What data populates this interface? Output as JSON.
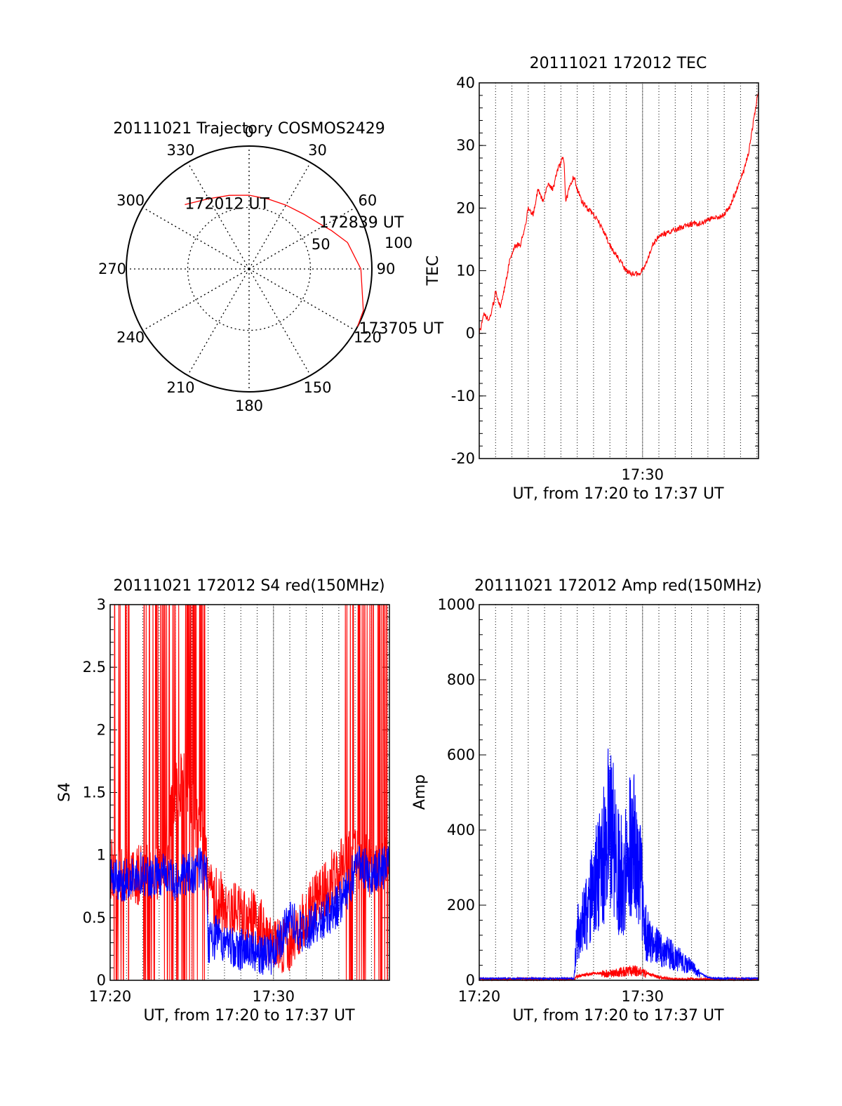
{
  "colors": {
    "red": "#ff0000",
    "blue": "#0000ff",
    "axis": "#000000"
  },
  "chart_data": [
    {
      "type": "polar",
      "title": "20111021 Trajectory COSMOS2429",
      "angle_labels": [
        "0",
        "30",
        "60",
        "90",
        "120",
        "150",
        "180",
        "210",
        "240",
        "270",
        "300",
        "330"
      ],
      "radial_labels": [
        "50",
        "100"
      ],
      "trajectory": {
        "points": [
          [
            315,
            74
          ],
          [
            330,
            66
          ],
          [
            345,
            62
          ],
          [
            0,
            60
          ],
          [
            15,
            59
          ],
          [
            30,
            60
          ],
          [
            45,
            63
          ],
          [
            57,
            68
          ],
          [
            65,
            74
          ],
          [
            75,
            83
          ],
          [
            90,
            91
          ],
          [
            110,
            99
          ],
          [
            118,
            100
          ]
        ],
        "labels": [
          {
            "text": "172012 UT",
            "az": 315,
            "zen": 74
          },
          {
            "text": "172839 UT",
            "az": 57,
            "zen": 68
          },
          {
            "text": "173705 UT",
            "az": 118,
            "zen": 100
          }
        ]
      }
    },
    {
      "type": "line",
      "title": "20111021 172012 TEC",
      "ylabel": "TEC",
      "xlabel": "UT, from 17:20 to 17:37 UT",
      "xlim": [
        0,
        17.1
      ],
      "ylim": [
        -20,
        40
      ],
      "yticks": [
        "-20",
        "-10",
        "0",
        "10",
        "20",
        "30",
        "40"
      ],
      "xticks": [
        {
          "x": 10,
          "label": "17:30"
        }
      ],
      "series": [
        {
          "color": "#ff0000",
          "x": [
            0.0,
            0.3,
            0.6,
            0.9,
            1.0,
            1.3,
            1.6,
            1.9,
            2.2,
            2.5,
            2.8,
            3.0,
            3.3,
            3.6,
            3.9,
            4.2,
            4.5,
            4.8,
            5.1,
            5.2,
            5.3,
            5.6,
            5.8,
            6.0,
            6.3,
            6.6,
            7.0,
            7.5,
            8.0,
            8.5,
            9.0,
            9.4,
            9.8,
            10.2,
            10.6,
            11.0,
            11.5,
            12.0,
            12.5,
            13.0,
            13.5,
            14.0,
            14.3,
            14.6,
            15.0,
            15.3,
            15.6,
            15.9,
            16.2,
            16.5,
            16.8,
            17.1
          ],
          "y": [
            0,
            3,
            2,
            5,
            7,
            4,
            8,
            12,
            14,
            14,
            17,
            20,
            19,
            23,
            21,
            24,
            23,
            26,
            28,
            27,
            21,
            24,
            25,
            23,
            21,
            20,
            19,
            17,
            14,
            12,
            10,
            9.5,
            9.5,
            11,
            14,
            15.5,
            16,
            16.5,
            17,
            17.5,
            17.5,
            18,
            18.5,
            18.5,
            19,
            20,
            22,
            24,
            26,
            29,
            34,
            39
          ]
        }
      ]
    },
    {
      "type": "line",
      "title": "20111021 172012 S4 red(150MHz)",
      "ylabel": "S4",
      "xlabel": "UT, from 17:20 to 17:37 UT",
      "xlim": [
        0,
        17.1
      ],
      "ylim": [
        0,
        3
      ],
      "yticks": [
        "0",
        "0.5",
        "1",
        "1.5",
        "2",
        "2.5",
        "3"
      ],
      "xticks": [
        {
          "x": 0,
          "label": "17:20"
        },
        {
          "x": 10,
          "label": "17:30"
        }
      ],
      "series": [
        {
          "color": "#ff0000",
          "x": [
            0.0,
            0.5,
            1.0,
            1.5,
            2.0,
            2.5,
            3.0,
            3.5,
            4.0,
            4.5,
            5.0,
            5.5,
            5.9,
            6.0,
            6.5,
            7.0,
            7.5,
            8.0,
            8.5,
            9.0,
            9.5,
            10.0,
            10.5,
            11.0,
            11.5,
            12.0,
            12.5,
            13.0,
            13.5,
            14.0,
            14.5,
            15.0,
            15.5,
            16.0,
            16.5,
            17.1
          ],
          "y": [
            0.9,
            0.85,
            0.85,
            0.8,
            0.9,
            0.85,
            0.9,
            1.1,
            1.5,
            1.6,
            1.4,
            1.2,
            1.0,
            0.7,
            0.65,
            0.6,
            0.55,
            0.5,
            0.5,
            0.45,
            0.35,
            0.3,
            0.25,
            0.3,
            0.45,
            0.5,
            0.6,
            0.7,
            0.8,
            0.85,
            1.0,
            1.0,
            0.95,
            0.9,
            0.9,
            0.9
          ]
        },
        {
          "color": "#0000ff",
          "x": [
            0.0,
            0.5,
            1.0,
            1.5,
            2.0,
            2.5,
            3.0,
            3.5,
            4.0,
            4.5,
            5.0,
            5.5,
            5.9,
            6.0,
            6.5,
            7.0,
            7.5,
            8.0,
            8.5,
            9.0,
            9.5,
            10.0,
            10.5,
            11.0,
            11.5,
            12.0,
            12.5,
            13.0,
            13.5,
            14.0,
            14.5,
            15.0,
            15.5,
            16.0,
            16.5,
            17.1
          ],
          "y": [
            0.85,
            0.8,
            0.8,
            0.85,
            0.85,
            0.8,
            0.85,
            0.85,
            0.8,
            0.85,
            0.85,
            0.9,
            0.85,
            0.3,
            0.35,
            0.3,
            0.28,
            0.25,
            0.25,
            0.22,
            0.2,
            0.22,
            0.35,
            0.5,
            0.4,
            0.4,
            0.45,
            0.5,
            0.55,
            0.6,
            0.7,
            0.9,
            0.9,
            0.85,
            0.9,
            0.9
          ]
        }
      ]
    },
    {
      "type": "line",
      "title": "20111021 172012 Amp red(150MHz)",
      "ylabel": "Amp",
      "xlabel": "UT, from 17:20 to 17:37 UT",
      "xlim": [
        0,
        17.1
      ],
      "ylim": [
        0,
        1000
      ],
      "yticks": [
        "0",
        "200",
        "400",
        "600",
        "800",
        "1000"
      ],
      "xticks": [
        {
          "x": 0,
          "label": "17:20"
        },
        {
          "x": 10,
          "label": "17:30"
        }
      ],
      "series": [
        {
          "color": "#ff0000",
          "x": [
            0.0,
            5.8,
            6.0,
            6.5,
            7.0,
            7.5,
            8.0,
            8.5,
            9.0,
            9.5,
            10.0,
            10.5,
            11.0,
            11.5,
            12.0,
            17.1
          ],
          "y": [
            3,
            3,
            10,
            15,
            18,
            20,
            22,
            25,
            28,
            30,
            25,
            15,
            8,
            5,
            3,
            3
          ]
        },
        {
          "color": "#0000ff",
          "x": [
            0.0,
            5.8,
            6.0,
            6.5,
            7.0,
            7.5,
            7.8,
            8.0,
            8.3,
            8.6,
            9.0,
            9.3,
            9.6,
            9.9,
            10.2,
            10.5,
            11.0,
            11.5,
            12.0,
            12.5,
            13.0,
            13.5,
            14.0,
            14.5,
            17.1
          ],
          "y": [
            5,
            5,
            150,
            200,
            280,
            380,
            450,
            500,
            400,
            320,
            350,
            450,
            380,
            300,
            150,
            120,
            100,
            90,
            70,
            60,
            40,
            20,
            8,
            5,
            5
          ]
        }
      ]
    }
  ]
}
